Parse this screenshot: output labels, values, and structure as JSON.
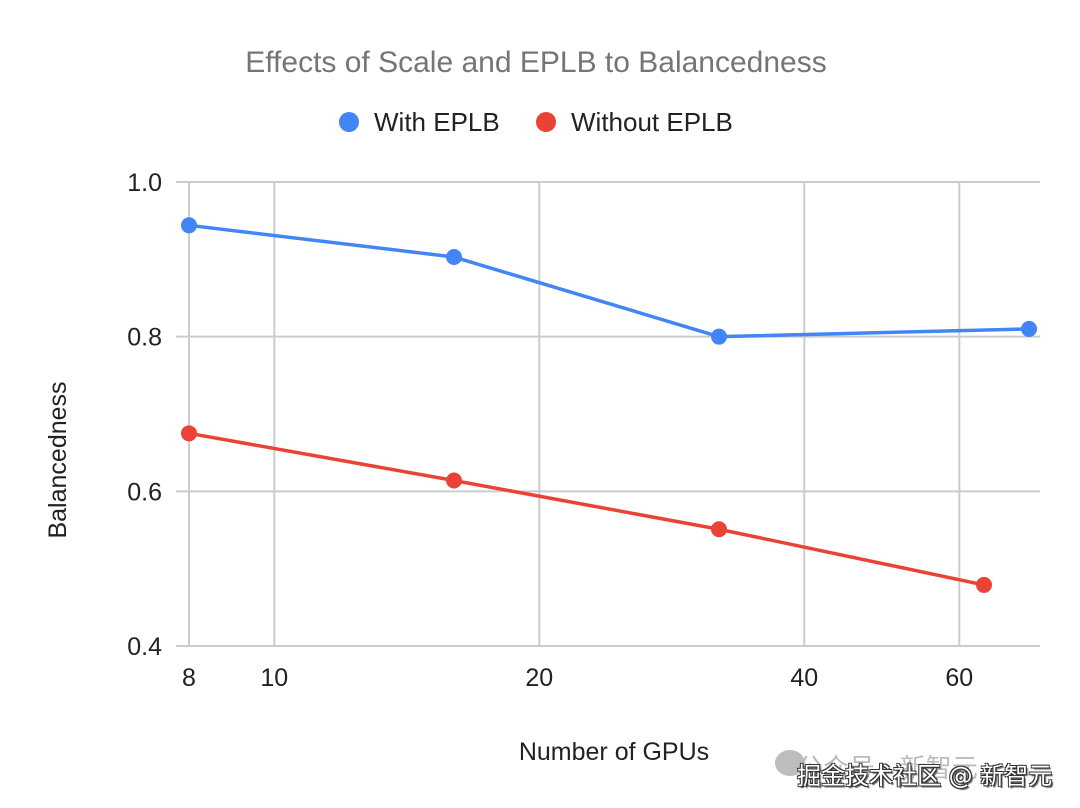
{
  "chart_data": {
    "type": "line",
    "title": "Effects of Scale and EPLB to Balancedness",
    "xlabel": "Number of GPUs",
    "ylabel": "Balancedness",
    "x_scale": "log",
    "xlim": [
      8,
      72
    ],
    "ylim": [
      0.4,
      1.0
    ],
    "x_ticks": [
      8,
      10,
      20,
      40,
      60
    ],
    "x_tick_labels": [
      "8",
      "10",
      "20",
      "40",
      "60"
    ],
    "y_ticks": [
      0.4,
      0.6,
      0.8,
      1.0
    ],
    "y_tick_labels": [
      "0.4",
      "0.6",
      "0.8",
      "1.0"
    ],
    "grid": true,
    "legend_position": "top-center",
    "series": [
      {
        "name": "With EPLB",
        "color": "#4285f4",
        "x": [
          8,
          16,
          32,
          72
        ],
        "y": [
          0.944,
          0.903,
          0.8,
          0.81
        ]
      },
      {
        "name": "Without EPLB",
        "color": "#ea4335",
        "x": [
          8,
          16,
          32,
          64
        ],
        "y": [
          0.675,
          0.614,
          0.551,
          0.479
        ]
      }
    ]
  },
  "watermark": {
    "back_text": "公众号 · 新智元",
    "front_text": "掘金技术社区 @ 新智元"
  }
}
